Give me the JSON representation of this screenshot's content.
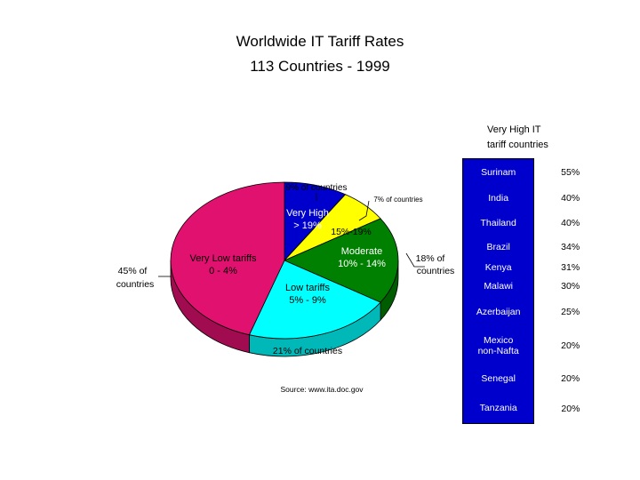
{
  "title": "Worldwide IT Tariff Rates",
  "subtitle": "113 Countries - 1999",
  "source": "Source: www.ita.doc.gov",
  "colors": {
    "very_high": "#0000cc",
    "high": "#ffff00",
    "moderate": "#008000",
    "low": "#00ffff",
    "very_low": "#e0116f"
  },
  "chart_data": {
    "type": "pie",
    "title": "Worldwide IT Tariff Rates",
    "subtitle": "113 Countries - 1999",
    "slices": [
      {
        "label_lines": [
          "Very High",
          "> 19%"
        ],
        "share": "9% of countries",
        "value": 9,
        "color": "#0000cc"
      },
      {
        "label_lines": [
          "15%-19%"
        ],
        "share": "7% of countries",
        "value": 7,
        "color": "#ffff00"
      },
      {
        "label_lines": [
          "Moderate",
          "10% - 14%"
        ],
        "share_lines": [
          "18% of",
          "countries"
        ],
        "value": 18,
        "color": "#008000"
      },
      {
        "label_lines": [
          "Low tariffs",
          "5% - 9%"
        ],
        "share": "21% of countries",
        "value": 21,
        "color": "#00ffff"
      },
      {
        "label_lines": [
          "Very Low tariffs",
          "0 - 4%"
        ],
        "share_lines": [
          "45% of",
          "countries"
        ],
        "value": 45,
        "color": "#e0116f"
      }
    ]
  },
  "table": {
    "header_lines": [
      "Very High IT",
      "tariff countries"
    ],
    "rows": [
      {
        "country": "Surinam",
        "rate": "55%"
      },
      {
        "country": "India",
        "rate": "40%"
      },
      {
        "country": "Thailand",
        "rate": "40%"
      },
      {
        "country": "Brazil",
        "rate": "34%"
      },
      {
        "country": "Kenya",
        "rate": "31%"
      },
      {
        "country": "Malawi",
        "rate": "30%"
      },
      {
        "country": "Azerbaijan",
        "rate": "25%"
      },
      {
        "country": "Mexico non-Nafta",
        "country_lines": [
          "Mexico",
          "non-Nafta"
        ],
        "rate": "20%"
      },
      {
        "country": "Senegal",
        "rate": "20%"
      },
      {
        "country": "Tanzania",
        "rate": "20%"
      }
    ]
  }
}
